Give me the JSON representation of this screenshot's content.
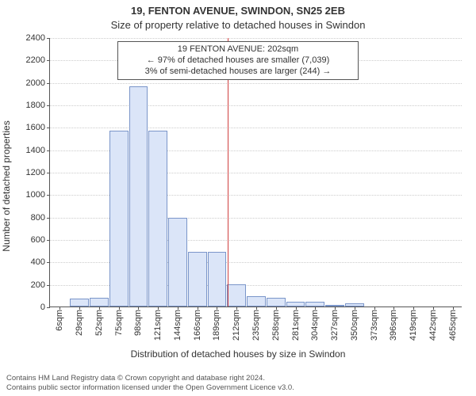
{
  "title_line1": "19, FENTON AVENUE, SWINDON, SN25 2EB",
  "title_line2": "Size of property relative to detached houses in Swindon",
  "ylabel": "Number of detached properties",
  "xlabel": "Distribution of detached houses by size in Swindon",
  "credit_line1": "Contains HM Land Registry data © Crown copyright and database right 2024.",
  "credit_line2": "Contains public sector information licensed under the Open Government Licence v3.0.",
  "chart": {
    "type": "histogram",
    "ylim": [
      0,
      2400
    ],
    "ytick_step": 200,
    "bar_color": "#dbe5f8",
    "bar_border_color": "#7a95c9",
    "grid_color": "#cccccc",
    "axis_color": "#555555",
    "background_color": "#ffffff",
    "marker_color": "#d04040",
    "title_fontsize": 13,
    "label_fontsize": 12,
    "tick_fontsize": 11,
    "x_categories": [
      "6sqm",
      "29sqm",
      "52sqm",
      "75sqm",
      "98sqm",
      "121sqm",
      "144sqm",
      "166sqm",
      "189sqm",
      "212sqm",
      "235sqm",
      "258sqm",
      "281sqm",
      "304sqm",
      "327sqm",
      "350sqm",
      "373sqm",
      "396sqm",
      "419sqm",
      "442sqm",
      "465sqm"
    ],
    "values": [
      0,
      70,
      80,
      1570,
      1960,
      1570,
      790,
      490,
      490,
      200,
      90,
      80,
      40,
      40,
      10,
      30,
      0,
      0,
      0,
      0,
      0
    ],
    "marker_value_sqm": 202,
    "annotation": {
      "line1": "19 FENTON AVENUE: 202sqm",
      "line2": "← 97% of detached houses are smaller (7,039)",
      "line3": "3% of semi-detached houses are larger (244) →"
    }
  }
}
